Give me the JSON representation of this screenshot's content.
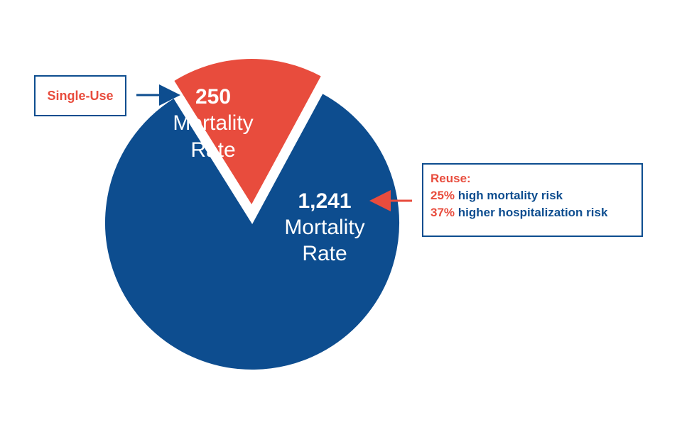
{
  "chart_data": {
    "type": "pie",
    "colors": {
      "single_use": "#e84c3d",
      "reuse": "#0d4d8f"
    },
    "slices": [
      {
        "name": "Single-Use",
        "value": 250,
        "value_label": "250",
        "text_line1": "Mortality",
        "text_line2": "Rate",
        "exploded": true
      },
      {
        "name": "Reuse",
        "value": 1241,
        "value_label": "1,241",
        "text_line1": "Mortality",
        "text_line2": "Rate",
        "exploded": false
      }
    ]
  },
  "callouts": {
    "single_use": {
      "label": "Single-Use"
    },
    "reuse": {
      "title": "Reuse:",
      "line1_pct": "25%",
      "line1_text": "high mortality risk",
      "line2_pct": "37%",
      "line2_text": "higher hospitalization risk"
    }
  }
}
